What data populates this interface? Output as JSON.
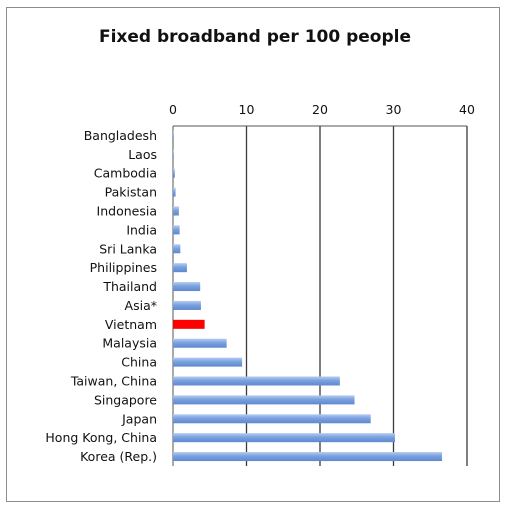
{
  "chart_data": {
    "type": "bar",
    "orientation": "horizontal",
    "title": "Fixed broadband per 100 people",
    "xlabel": "",
    "ylabel": "",
    "xlim": [
      0,
      40
    ],
    "xticks": [
      0,
      10,
      20,
      30,
      40
    ],
    "xaxis_position": "top",
    "grid": "vertical",
    "categories": [
      "Bangladesh",
      "Laos",
      "Cambodia",
      "Pakistan",
      "Indonesia",
      "India",
      "Sri Lanka",
      "Philippines",
      "Thailand",
      "Asia*",
      "Vietnam",
      "Malaysia",
      "China",
      "Taiwan, China",
      "Singapore",
      "Japan",
      "Hong Kong, China",
      "Korea (Rep.)"
    ],
    "values": [
      0.05,
      0.1,
      0.25,
      0.35,
      0.8,
      0.9,
      1.0,
      1.9,
      3.7,
      3.8,
      4.3,
      7.3,
      9.4,
      22.7,
      24.7,
      26.9,
      30.2,
      36.6
    ],
    "highlight_category": "Vietnam",
    "colors": {
      "bar": "#6f97d9",
      "bar_light": "#b5ccf0",
      "highlight": "#ff0000",
      "grid": "#3a3a3a",
      "axis": "#555555"
    }
  }
}
